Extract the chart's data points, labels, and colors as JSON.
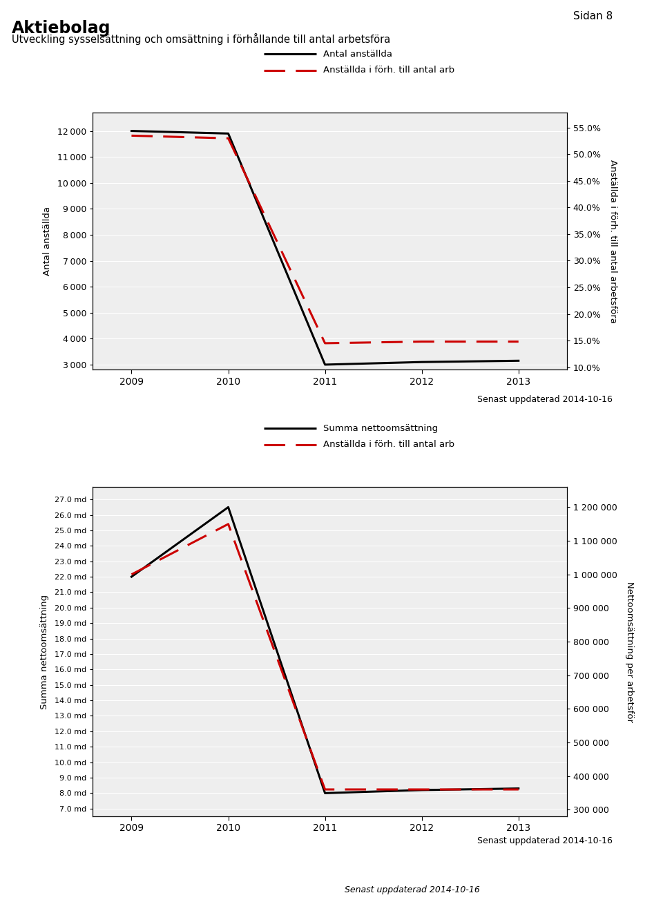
{
  "title": "Aktiebolag",
  "subtitle": "Utveckling sysselsättning och omsättning i förhållande till antal arbetsföra",
  "page_label": "Sidan 8",
  "footer1": "Senast uppdaterad 2014-10-16",
  "footer2": "Senast uppdaterad 2014-10-16",
  "footer3": "Senast uppdaterad 2014-10-16",
  "years": [
    2009,
    2010,
    2011,
    2012,
    2013
  ],
  "chart1": {
    "line1_label": "Antal anställda",
    "line2_label": "Anställda i förh. till antal arb",
    "ylabel_left": "Antal anställda",
    "ylabel_right": "Anställda i förh. till antal arbetsföra",
    "line1_values": [
      12000,
      11900,
      3000,
      3100,
      3150
    ],
    "line2_values": [
      0.535,
      0.53,
      0.145,
      0.148,
      0.148
    ],
    "ylim_left": [
      2800,
      12700
    ],
    "ylim_right": [
      0.095,
      0.578
    ],
    "yticks_left": [
      3000,
      4000,
      5000,
      6000,
      7000,
      8000,
      9000,
      10000,
      11000,
      12000
    ],
    "yticks_right": [
      0.1,
      0.15,
      0.2,
      0.25,
      0.3,
      0.35,
      0.4,
      0.45,
      0.5,
      0.55
    ],
    "ytick_labels_right": [
      "10.0%",
      "15.0%",
      "20.0%",
      "25.0%",
      "30.0%",
      "35.0%",
      "40.0%",
      "45.0%",
      "50.0%",
      "55.0%"
    ]
  },
  "chart2": {
    "line1_label": "Summa nettoomsättning",
    "line2_label": "Anställda i förh. till antal arb",
    "ylabel_left": "Summa nettoomsättning",
    "ylabel_right": "Nettoomsättning per arbetsför",
    "line1_values": [
      22.0,
      26.5,
      8.0,
      8.2,
      8.3
    ],
    "line2_values": [
      1000000,
      1150000,
      360000,
      360000,
      360000
    ],
    "ylim_left": [
      6.5,
      27.8
    ],
    "ylim_right": [
      280000,
      1260000
    ],
    "yticks_left_values": [
      7.0,
      8.0,
      9.0,
      10.0,
      11.0,
      12.0,
      13.0,
      14.0,
      15.0,
      16.0,
      17.0,
      18.0,
      19.0,
      20.0,
      21.0,
      22.0,
      23.0,
      24.0,
      25.0,
      26.0,
      27.0
    ],
    "yticks_left_labels": [
      "7.0 md",
      "8.0 md",
      "9.0 md",
      "10.0 md",
      "11.0 md",
      "12.0 md",
      "13.0 md",
      "14.0 md",
      "15.0 md",
      "16.0 md",
      "17.0 md",
      "18.0 md",
      "19.0 md",
      "20.0 md",
      "21.0 md",
      "22.0 md",
      "23.0 md",
      "24.0 md",
      "25.0 md",
      "26.0 md",
      "27.0 md"
    ],
    "yticks_right": [
      300000,
      400000,
      500000,
      600000,
      700000,
      800000,
      900000,
      1000000,
      1100000,
      1200000
    ],
    "ytick_labels_right": [
      "300 000",
      "400 000",
      "500 000",
      "600 000",
      "700 000",
      "800 000",
      "900 000",
      "1 000 000",
      "1 100 000",
      "1 200 000"
    ]
  },
  "line1_color": "#000000",
  "line2_color": "#cc0000",
  "line1_lw": 2.2,
  "line2_lw": 2.2,
  "line2_dash": [
    10,
    5
  ],
  "plot_bg": "#eeeeee"
}
